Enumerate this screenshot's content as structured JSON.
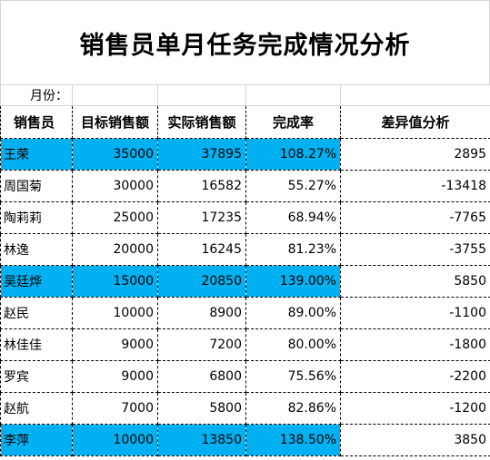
{
  "title": "销售员单月任务完成情况分析",
  "month_label": "月份：",
  "headers": {
    "name": "销售员",
    "target": "目标销售额",
    "actual": "实际销售额",
    "rate": "完成率",
    "diff": "差异值分析"
  },
  "highlight_color": "#00b0f0",
  "rows": [
    {
      "name": "王荣",
      "target": "35000",
      "actual": "37895",
      "rate": "108.27%",
      "diff": "2895",
      "highlight": true
    },
    {
      "name": "周国菊",
      "target": "30000",
      "actual": "16582",
      "rate": "55.27%",
      "diff": "-13418",
      "highlight": false
    },
    {
      "name": "陶莉莉",
      "target": "25000",
      "actual": "17235",
      "rate": "68.94%",
      "diff": "-7765",
      "highlight": false
    },
    {
      "name": "林逸",
      "target": "20000",
      "actual": "16245",
      "rate": "81.23%",
      "diff": "-3755",
      "highlight": false
    },
    {
      "name": "吴廷烨",
      "target": "15000",
      "actual": "20850",
      "rate": "139.00%",
      "diff": "5850",
      "highlight": true
    },
    {
      "name": "赵民",
      "target": "10000",
      "actual": "8900",
      "rate": "89.00%",
      "diff": "-1100",
      "highlight": false
    },
    {
      "name": "林佳佳",
      "target": "9000",
      "actual": "7200",
      "rate": "80.00%",
      "diff": "-1800",
      "highlight": false
    },
    {
      "name": "罗宾",
      "target": "9000",
      "actual": "6800",
      "rate": "75.56%",
      "diff": "-2200",
      "highlight": false
    },
    {
      "name": "赵航",
      "target": "7000",
      "actual": "5800",
      "rate": "82.86%",
      "diff": "-1200",
      "highlight": false
    },
    {
      "name": "李萍",
      "target": "10000",
      "actual": "13850",
      "rate": "138.50%",
      "diff": "3850",
      "highlight": true
    }
  ]
}
